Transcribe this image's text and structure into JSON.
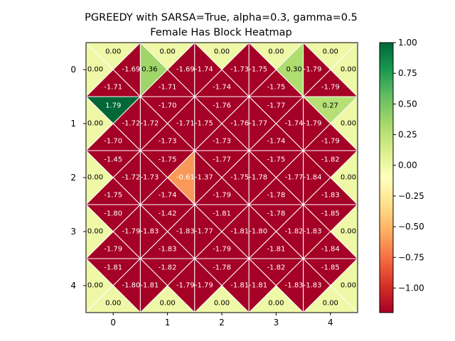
{
  "chart_data": {
    "type": "heatmap",
    "title_line1": "PGREEDY with SARSA=True, alpha=0.3, gamma=0.5",
    "title_line2": "Female Has Block Heatmap",
    "rows": 5,
    "cols": 5,
    "x_ticks": [
      "0",
      "1",
      "2",
      "3",
      "4"
    ],
    "y_ticks": [
      "0",
      "1",
      "2",
      "3",
      "4"
    ],
    "colorbar": {
      "min": -1.2,
      "max": 1.0,
      "ticks": [
        "1.00",
        "0.75",
        "0.50",
        "0.25",
        "0.00",
        "−0.25",
        "−0.50",
        "−0.75",
        "−1.00"
      ],
      "tick_values": [
        1.0,
        0.75,
        0.5,
        0.25,
        0.0,
        -0.25,
        -0.5,
        -0.75,
        -1.0
      ],
      "colormap": "RdYlGn"
    },
    "cells": [
      [
        {
          "top": "0.00",
          "left": "0.00",
          "right": "-1.69",
          "bottom": "-1.71"
        },
        {
          "top": "0.00",
          "left": "0.36",
          "right": "-1.69",
          "bottom": "-1.71"
        },
        {
          "top": "0.00",
          "left": "-1.74",
          "right": "-1.73",
          "bottom": "-1.74"
        },
        {
          "top": "0.00",
          "left": "-1.75",
          "right": "0.30",
          "bottom": "-1.75"
        },
        {
          "top": "0.00",
          "left": "-1.79",
          "right": "0.00",
          "bottom": "-1.79"
        }
      ],
      [
        {
          "top": "1.79",
          "left": "0.00",
          "right": "-1.72",
          "bottom": "-1.70"
        },
        {
          "top": "-1.70",
          "left": "-1.72",
          "right": "-1.71",
          "bottom": "-1.73"
        },
        {
          "top": "-1.76",
          "left": "-1.75",
          "right": "-1.76",
          "bottom": "-1.73"
        },
        {
          "top": "-1.77",
          "left": "-1.77",
          "right": "-1.74",
          "bottom": "-1.74"
        },
        {
          "top": "0.27",
          "left": "-1.79",
          "right": "0.00",
          "bottom": "-1.79"
        }
      ],
      [
        {
          "top": "-1.45",
          "left": "0.00",
          "right": "-1.72",
          "bottom": "-1.75"
        },
        {
          "top": "-1.75",
          "left": "-1.73",
          "right": "-0.61",
          "bottom": "-1.74"
        },
        {
          "top": "-1.77",
          "left": "-1.37",
          "right": "-1.75",
          "bottom": "-1.79"
        },
        {
          "top": "-1.75",
          "left": "-1.78",
          "right": "-1.77",
          "bottom": "-1.78"
        },
        {
          "top": "-1.82",
          "left": "-1.84",
          "right": "0.00",
          "bottom": "-1.83"
        }
      ],
      [
        {
          "top": "-1.80",
          "left": "0.00",
          "right": "-1.79",
          "bottom": "-1.79"
        },
        {
          "top": "-1.42",
          "left": "-1.83",
          "right": "-1.83",
          "bottom": "-1.83"
        },
        {
          "top": "-1.81",
          "left": "-1.77",
          "right": "-1.81",
          "bottom": "-1.79"
        },
        {
          "top": "-1.78",
          "left": "-1.80",
          "right": "-1.82",
          "bottom": "-1.81"
        },
        {
          "top": "-1.85",
          "left": "-1.83",
          "right": "0.00",
          "bottom": "-1.84"
        }
      ],
      [
        {
          "top": "-1.81",
          "left": "0.00",
          "right": "-1.80",
          "bottom": "0.00"
        },
        {
          "top": "-1.82",
          "left": "-1.81",
          "right": "-1.79",
          "bottom": "0.00"
        },
        {
          "top": "-1.78",
          "left": "-1.79",
          "right": "-1.81",
          "bottom": "0.00"
        },
        {
          "top": "-1.82",
          "left": "-1.81",
          "right": "-1.83",
          "bottom": "0.00"
        },
        {
          "top": "-1.85",
          "left": "-1.83",
          "right": "0.00",
          "bottom": "0.00"
        }
      ]
    ]
  }
}
